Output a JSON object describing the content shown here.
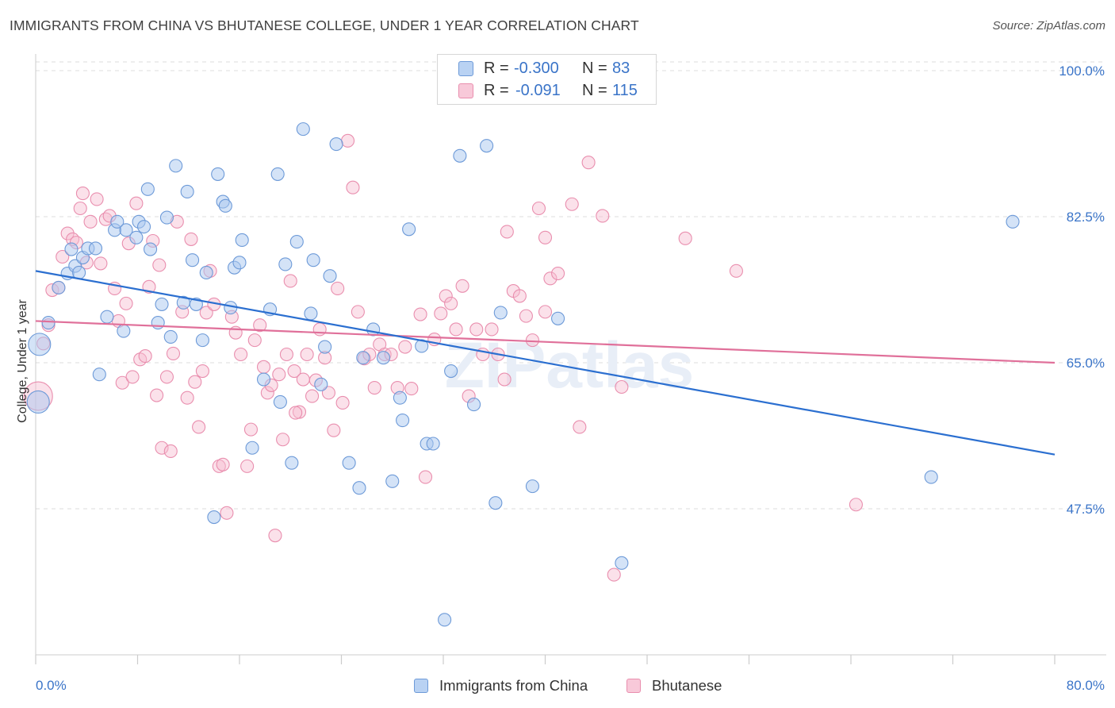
{
  "title": "IMMIGRANTS FROM CHINA VS BHUTANESE COLLEGE, UNDER 1 YEAR CORRELATION CHART",
  "source": "Source: ZipAtlas.com",
  "watermark": "ZIPatlas",
  "legend": {
    "rows": [
      {
        "r_label": "R =",
        "r_value": "-0.300",
        "n_label": "N =",
        "n_value": "83"
      },
      {
        "r_label": "R =",
        "r_value": "-0.091",
        "n_label": "N =",
        "n_value": "115"
      }
    ]
  },
  "bottom_legend": {
    "series1": "Immigrants from China",
    "series2": "Bhutanese"
  },
  "colors": {
    "china_fill": "#a9c8f0",
    "china_stroke": "#6d9ad8",
    "china_line": "#2b6fd0",
    "bhutanese_fill": "#f6bcd0",
    "bhutanese_stroke": "#e98eae",
    "bhutanese_line": "#e0709a",
    "axis_label": "#3a74c8",
    "grid": "#dedede"
  },
  "chart_data": {
    "type": "scatter",
    "title": "IMMIGRANTS FROM CHINA VS BHUTANESE COLLEGE, UNDER 1 YEAR CORRELATION CHART",
    "xlabel": "",
    "ylabel": "College, Under 1 year",
    "xlim": [
      0,
      80
    ],
    "ylim": [
      30,
      102
    ],
    "x_tick_labels": [
      "0.0%",
      "80.0%"
    ],
    "y_ticks": [
      47.5,
      65.0,
      82.5,
      100.0
    ],
    "y_tick_labels": [
      "47.5%",
      "65.0%",
      "82.5%",
      "100.0%"
    ],
    "grid": true,
    "legend_placement": "top-center",
    "series": [
      {
        "name": "Immigrants from China",
        "R": -0.3,
        "N": 83,
        "trend": {
          "x": [
            0,
            80
          ],
          "y": [
            76.0,
            54.0
          ]
        },
        "points": [
          [
            0.3,
            67.2
          ],
          [
            1.0,
            69.8
          ],
          [
            1.8,
            74.0
          ],
          [
            2.5,
            75.7
          ],
          [
            2.8,
            78.6
          ],
          [
            3.1,
            76.6
          ],
          [
            3.4,
            75.8
          ],
          [
            3.7,
            77.6
          ],
          [
            4.1,
            78.7
          ],
          [
            4.7,
            78.7
          ],
          [
            5.0,
            63.6
          ],
          [
            5.6,
            70.5
          ],
          [
            6.2,
            80.9
          ],
          [
            6.4,
            81.9
          ],
          [
            6.9,
            68.8
          ],
          [
            7.1,
            80.9
          ],
          [
            7.9,
            80.0
          ],
          [
            8.1,
            81.9
          ],
          [
            8.5,
            81.3
          ],
          [
            8.8,
            85.8
          ],
          [
            9.0,
            78.6
          ],
          [
            9.6,
            69.8
          ],
          [
            9.9,
            72.0
          ],
          [
            10.3,
            82.4
          ],
          [
            10.6,
            68.1
          ],
          [
            11.0,
            88.6
          ],
          [
            11.6,
            72.2
          ],
          [
            11.9,
            85.5
          ],
          [
            12.3,
            77.3
          ],
          [
            12.6,
            72.0
          ],
          [
            13.1,
            67.7
          ],
          [
            13.4,
            75.8
          ],
          [
            14.0,
            46.5
          ],
          [
            14.3,
            87.6
          ],
          [
            14.7,
            84.3
          ],
          [
            14.9,
            83.8
          ],
          [
            15.3,
            71.6
          ],
          [
            15.6,
            76.4
          ],
          [
            16.0,
            77.0
          ],
          [
            16.2,
            79.7
          ],
          [
            17.0,
            54.8
          ],
          [
            17.9,
            63.0
          ],
          [
            18.4,
            71.4
          ],
          [
            19.0,
            87.6
          ],
          [
            19.2,
            60.3
          ],
          [
            19.6,
            76.8
          ],
          [
            20.1,
            53.0
          ],
          [
            20.5,
            79.5
          ],
          [
            21.0,
            93.0
          ],
          [
            21.6,
            70.9
          ],
          [
            21.8,
            77.3
          ],
          [
            22.4,
            62.4
          ],
          [
            22.7,
            66.9
          ],
          [
            23.1,
            75.4
          ],
          [
            23.6,
            91.2
          ],
          [
            24.6,
            53.0
          ],
          [
            25.4,
            50.0
          ],
          [
            25.7,
            65.6
          ],
          [
            26.5,
            69.0
          ],
          [
            27.3,
            65.6
          ],
          [
            28.0,
            50.8
          ],
          [
            28.6,
            60.8
          ],
          [
            28.8,
            58.1
          ],
          [
            29.3,
            81.0
          ],
          [
            30.3,
            67.0
          ],
          [
            30.7,
            55.3
          ],
          [
            31.2,
            55.3
          ],
          [
            32.1,
            34.2
          ],
          [
            32.6,
            64.0
          ],
          [
            33.3,
            89.8
          ],
          [
            34.4,
            60.0
          ],
          [
            35.4,
            91.0
          ],
          [
            36.1,
            48.2
          ],
          [
            36.5,
            71.0
          ],
          [
            39.0,
            50.2
          ],
          [
            41.0,
            70.3
          ],
          [
            46.0,
            41.0
          ],
          [
            70.3,
            51.3
          ],
          [
            76.7,
            81.9
          ],
          [
            0.2,
            60.3
          ]
        ]
      },
      {
        "name": "Bhutanese",
        "R": -0.091,
        "N": 115,
        "trend": {
          "x": [
            0,
            80
          ],
          "y": [
            70.0,
            65.0
          ]
        },
        "points": [
          [
            0.2,
            61.0
          ],
          [
            0.6,
            67.3
          ],
          [
            1.0,
            69.5
          ],
          [
            1.3,
            73.7
          ],
          [
            1.8,
            74.0
          ],
          [
            2.1,
            77.7
          ],
          [
            2.5,
            80.5
          ],
          [
            2.9,
            79.8
          ],
          [
            3.2,
            79.4
          ],
          [
            3.5,
            83.5
          ],
          [
            3.7,
            85.3
          ],
          [
            4.0,
            77.0
          ],
          [
            4.3,
            81.9
          ],
          [
            4.8,
            84.6
          ],
          [
            5.1,
            76.9
          ],
          [
            5.5,
            82.2
          ],
          [
            5.8,
            82.6
          ],
          [
            6.2,
            73.9
          ],
          [
            6.5,
            70.0
          ],
          [
            6.8,
            62.6
          ],
          [
            7.1,
            72.1
          ],
          [
            7.3,
            79.3
          ],
          [
            7.6,
            63.3
          ],
          [
            7.9,
            84.1
          ],
          [
            8.2,
            65.4
          ],
          [
            8.6,
            65.8
          ],
          [
            8.9,
            74.1
          ],
          [
            9.2,
            79.6
          ],
          [
            9.5,
            61.1
          ],
          [
            9.7,
            76.7
          ],
          [
            9.9,
            54.8
          ],
          [
            10.3,
            63.3
          ],
          [
            10.6,
            54.4
          ],
          [
            10.8,
            66.1
          ],
          [
            11.1,
            81.9
          ],
          [
            11.5,
            71.1
          ],
          [
            11.9,
            60.8
          ],
          [
            12.2,
            79.8
          ],
          [
            12.5,
            62.7
          ],
          [
            12.8,
            57.3
          ],
          [
            13.1,
            64.0
          ],
          [
            13.4,
            71.0
          ],
          [
            13.7,
            76.0
          ],
          [
            14.0,
            72.0
          ],
          [
            14.4,
            52.6
          ],
          [
            14.7,
            52.8
          ],
          [
            15.0,
            47.0
          ],
          [
            15.4,
            70.5
          ],
          [
            15.7,
            68.6
          ],
          [
            16.1,
            66.0
          ],
          [
            16.6,
            52.6
          ],
          [
            16.9,
            57.0
          ],
          [
            17.2,
            67.7
          ],
          [
            17.6,
            69.5
          ],
          [
            17.9,
            64.5
          ],
          [
            18.2,
            61.4
          ],
          [
            18.5,
            62.3
          ],
          [
            18.8,
            44.3
          ],
          [
            19.1,
            63.6
          ],
          [
            19.4,
            55.8
          ],
          [
            19.7,
            66.0
          ],
          [
            20.0,
            74.8
          ],
          [
            20.3,
            64.0
          ],
          [
            20.7,
            59.1
          ],
          [
            21.0,
            63.0
          ],
          [
            21.3,
            66.0
          ],
          [
            21.7,
            61.0
          ],
          [
            22.0,
            62.9
          ],
          [
            22.3,
            69.0
          ],
          [
            22.7,
            65.6
          ],
          [
            23.0,
            61.4
          ],
          [
            23.4,
            56.9
          ],
          [
            23.7,
            73.9
          ],
          [
            24.1,
            60.2
          ],
          [
            24.5,
            91.6
          ],
          [
            24.9,
            86.0
          ],
          [
            25.3,
            71.1
          ],
          [
            25.8,
            65.5
          ],
          [
            26.2,
            66.0
          ],
          [
            26.6,
            62.0
          ],
          [
            27.0,
            67.2
          ],
          [
            27.4,
            66.0
          ],
          [
            27.9,
            66.0
          ],
          [
            28.4,
            62.0
          ],
          [
            29.0,
            66.9
          ],
          [
            29.5,
            61.9
          ],
          [
            30.2,
            70.8
          ],
          [
            30.6,
            51.3
          ],
          [
            31.3,
            67.8
          ],
          [
            31.8,
            70.9
          ],
          [
            32.2,
            73.0
          ],
          [
            32.6,
            72.1
          ],
          [
            33.0,
            69.0
          ],
          [
            33.5,
            74.2
          ],
          [
            34.0,
            61.0
          ],
          [
            34.6,
            69.0
          ],
          [
            35.1,
            66.0
          ],
          [
            35.8,
            69.0
          ],
          [
            36.3,
            66.0
          ],
          [
            36.8,
            63.0
          ],
          [
            37.0,
            80.7
          ],
          [
            37.5,
            73.6
          ],
          [
            38.0,
            73.0
          ],
          [
            38.5,
            70.6
          ],
          [
            39.0,
            67.7
          ],
          [
            39.5,
            83.5
          ],
          [
            40.0,
            71.1
          ],
          [
            40.4,
            75.1
          ],
          [
            41.0,
            75.7
          ],
          [
            42.1,
            84.0
          ],
          [
            42.7,
            57.3
          ],
          [
            43.4,
            89.0
          ],
          [
            44.5,
            82.6
          ],
          [
            46.0,
            62.1
          ],
          [
            51.0,
            79.9
          ],
          [
            55.0,
            76.0
          ],
          [
            64.4,
            48.0
          ],
          [
            40.0,
            80.0
          ],
          [
            45.4,
            39.6
          ],
          [
            20.4,
            59.0
          ]
        ]
      }
    ]
  }
}
